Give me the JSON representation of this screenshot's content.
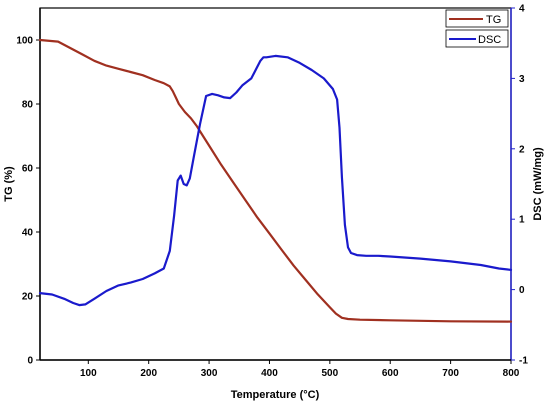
{
  "chart_data": {
    "type": "line",
    "x_axis": {
      "label": "Temperature (°C)",
      "range": [
        20,
        800
      ],
      "ticks": [
        100,
        200,
        300,
        400,
        500,
        600,
        700,
        800
      ]
    },
    "y_left": {
      "label": "TG (%)",
      "range": [
        0,
        110
      ],
      "ticks": [
        0,
        20,
        40,
        60,
        80,
        100
      ],
      "color": "#000000"
    },
    "y_right": {
      "label": "DSC (mW/mg)",
      "range": [
        -1,
        4
      ],
      "ticks": [
        -1,
        0,
        1,
        2,
        3,
        4
      ],
      "color": "#2222cc"
    },
    "legend": {
      "position": "top-right"
    },
    "grid": false,
    "series": [
      {
        "name": "TG",
        "axis": "left",
        "color": "#a03020",
        "x": [
          20,
          50,
          70,
          90,
          110,
          130,
          150,
          170,
          190,
          210,
          225,
          235,
          240,
          245,
          250,
          260,
          270,
          280,
          290,
          300,
          320,
          340,
          360,
          380,
          400,
          420,
          440,
          460,
          480,
          500,
          510,
          520,
          530,
          550,
          600,
          700,
          800
        ],
        "y": [
          100,
          99.5,
          97.5,
          95.5,
          93.5,
          92,
          91,
          90,
          89,
          87.5,
          86.5,
          85.5,
          84,
          82,
          80,
          77.5,
          75.5,
          73,
          70,
          67,
          61,
          55.5,
          50,
          44.5,
          39.5,
          34.5,
          29.5,
          25,
          20.5,
          16.5,
          14.5,
          13.2,
          12.8,
          12.6,
          12.4,
          12.1,
          12
        ]
      },
      {
        "name": "DSC",
        "axis": "right",
        "color": "#1a1acc",
        "x": [
          20,
          40,
          60,
          75,
          85,
          95,
          110,
          130,
          150,
          170,
          190,
          210,
          225,
          235,
          242,
          248,
          253,
          258,
          263,
          268,
          275,
          285,
          295,
          305,
          315,
          325,
          335,
          345,
          355,
          370,
          385,
          390,
          395,
          410,
          430,
          450,
          470,
          490,
          505,
          512,
          516,
          520,
          525,
          530,
          535,
          545,
          560,
          580,
          600,
          650,
          700,
          750,
          780,
          800
        ],
        "y": [
          -0.05,
          -0.07,
          -0.13,
          -0.19,
          -0.22,
          -0.21,
          -0.13,
          -0.02,
          0.06,
          0.1,
          0.15,
          0.23,
          0.3,
          0.55,
          1.05,
          1.55,
          1.62,
          1.5,
          1.48,
          1.58,
          1.9,
          2.35,
          2.75,
          2.78,
          2.76,
          2.73,
          2.72,
          2.8,
          2.9,
          3.0,
          3.25,
          3.3,
          3.3,
          3.32,
          3.3,
          3.22,
          3.12,
          3.0,
          2.85,
          2.7,
          2.3,
          1.6,
          0.92,
          0.6,
          0.52,
          0.49,
          0.48,
          0.48,
          0.47,
          0.44,
          0.4,
          0.35,
          0.3,
          0.28
        ]
      }
    ]
  }
}
